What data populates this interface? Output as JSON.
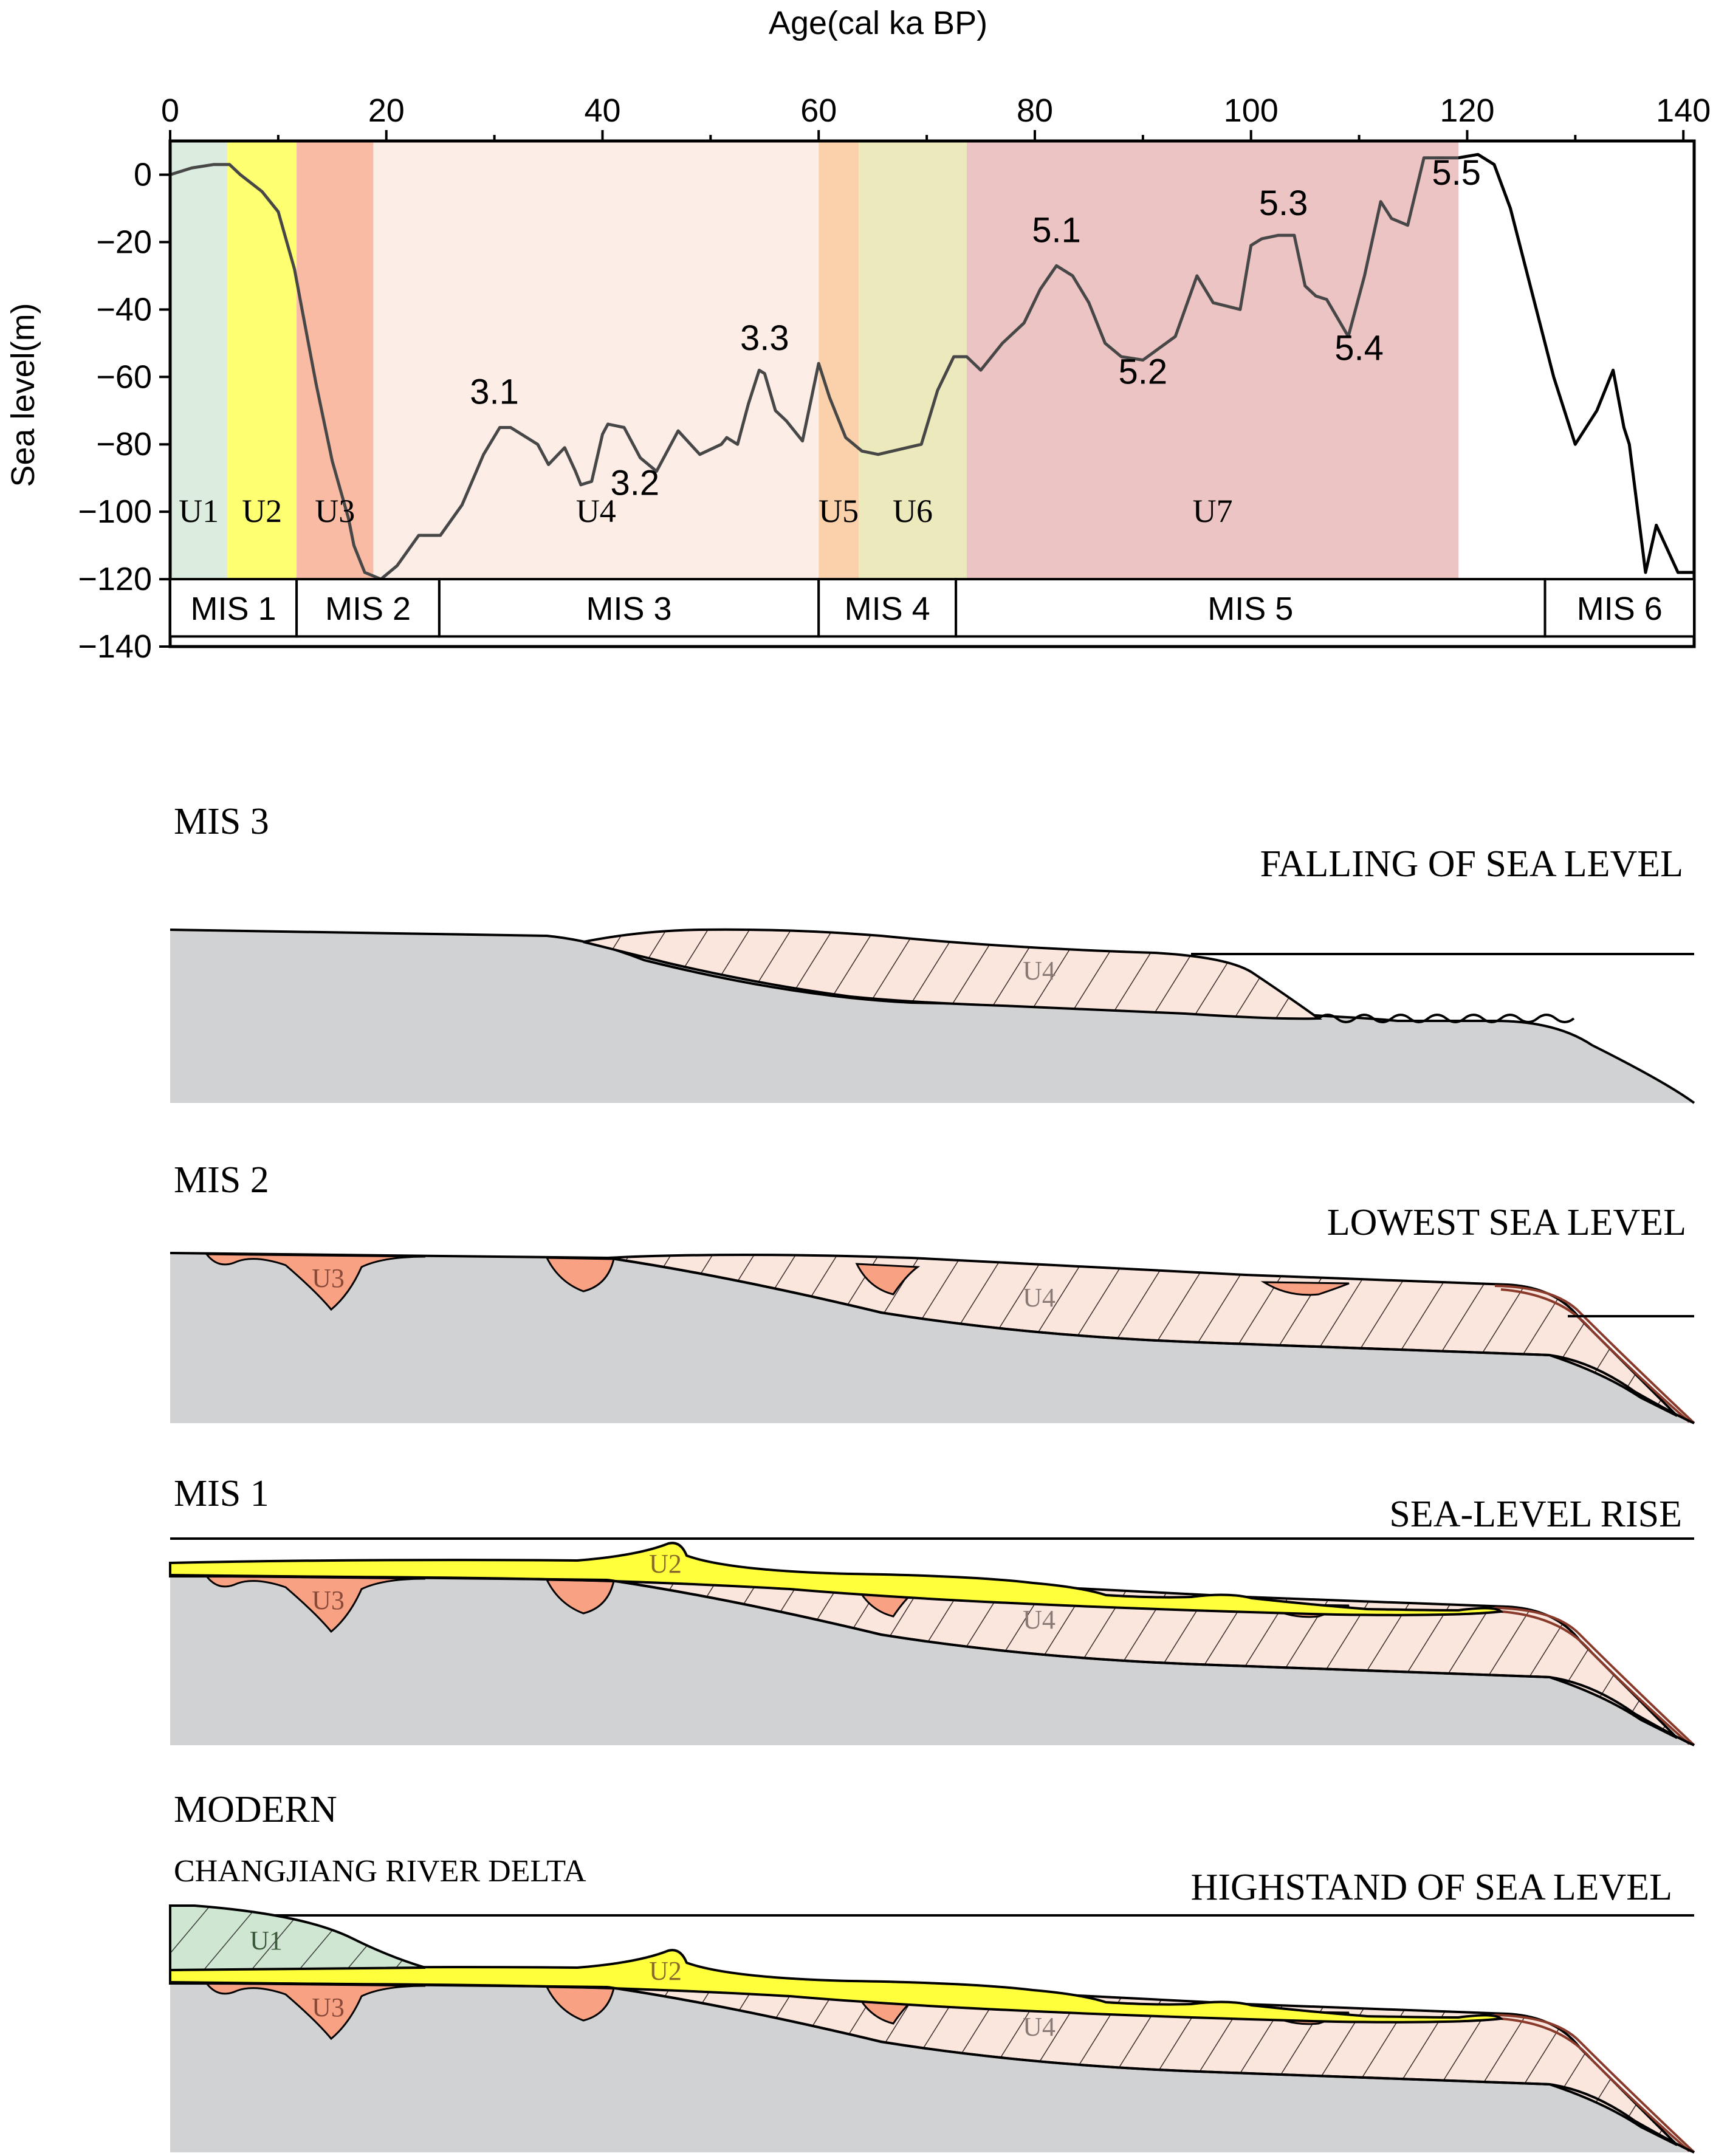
{
  "chart": {
    "x_axis_label": "Age(cal ka BP)",
    "y_axis_label": "Sea level(m)",
    "x_ticks": [
      "0",
      "20",
      "40",
      "60",
      "80",
      "100",
      "120",
      "140"
    ],
    "y_ticks": [
      "0",
      "−20",
      "−40",
      "−60",
      "−80",
      "−100",
      "−120",
      "−140"
    ],
    "units": [
      {
        "label": "U1",
        "from": 0,
        "to": 5.3,
        "color": "#cfe6d3"
      },
      {
        "label": "U2",
        "from": 5.3,
        "to": 11.7,
        "color": "#ffff3c"
      },
      {
        "label": "U3",
        "from": 11.7,
        "to": 18.8,
        "color": "#f9a183"
      },
      {
        "label": "U4",
        "from": 18.8,
        "to": 60.0,
        "color": "#fbe6de"
      },
      {
        "label": "U5",
        "from": 60.0,
        "to": 63.7,
        "color": "#f9c08a"
      },
      {
        "label": "U6",
        "from": 63.7,
        "to": 73.7,
        "color": "#e5e2a2"
      },
      {
        "label": "U7",
        "from": 73.7,
        "to": 119.2,
        "color": "#e5adac"
      }
    ],
    "stages": [
      {
        "label": "MIS 1",
        "from": 0,
        "to": 11.7
      },
      {
        "label": "MIS 2",
        "from": 11.7,
        "to": 24.9
      },
      {
        "label": "MIS 3",
        "from": 24.9,
        "to": 60.0
      },
      {
        "label": "MIS 4",
        "from": 60.0,
        "to": 72.7
      },
      {
        "label": "MIS 5",
        "from": 72.7,
        "to": 127.2
      },
      {
        "label": "MIS 6",
        "from": 127.2,
        "to": 141
      }
    ],
    "peak_labels": [
      "3.1",
      "3.2",
      "3.3",
      "5.1",
      "5.2",
      "5.3",
      "5.4",
      "5.5"
    ],
    "legend": {
      "items": [
        {
          "name": "U1",
          "swatch_color": "#cfe6d3"
        },
        {
          "name": "U2",
          "swatch_color": "#ffff3c"
        },
        {
          "name": "U3",
          "swatch_color": "#f9a183"
        },
        {
          "name": "U4",
          "swatch_color": "#fbe6de"
        },
        {
          "name": "U5",
          "swatch_color": "#f9c08a"
        },
        {
          "name": "U6",
          "swatch_color": "#e5e2a2"
        },
        {
          "name": "U7",
          "swatch_color": "#e5adac"
        }
      ]
    }
  },
  "chart_data": {
    "type": "line",
    "title": "",
    "xlabel": "Age(cal ka BP)",
    "ylabel": "Sea level(m)",
    "xlim": [
      0,
      141
    ],
    "ylim": [
      -140,
      10
    ],
    "series": [
      {
        "name": "Sea level",
        "x": [
          0,
          2,
          4,
          5.5,
          6.5,
          8.5,
          10,
          11.5,
          12.5,
          13.5,
          15,
          16.5,
          17,
          18,
          19.5,
          21,
          23,
          25,
          27,
          29,
          30.5,
          31.5,
          33,
          34,
          35,
          36.5,
          37.5,
          38,
          39,
          40,
          40.5,
          42,
          43.5,
          45,
          47,
          49,
          51,
          51.5,
          52.5,
          53.5,
          54.5,
          55,
          56,
          57,
          58.5,
          60,
          61,
          62.5,
          64,
          65.5,
          69.5,
          71,
          72.5,
          73.7,
          75,
          77,
          79,
          80.5,
          82,
          83.5,
          85,
          86.5,
          88,
          90,
          93,
          95,
          96.5,
          99,
          100,
          101,
          102.5,
          104,
          105,
          106,
          107,
          109,
          110.5,
          112,
          113,
          114.5,
          116,
          117.5,
          119,
          119.2,
          121,
          122.5,
          124,
          126,
          128,
          130,
          132,
          133.5,
          134.5,
          135,
          136.5,
          137.5,
          139.5,
          141
        ],
        "values": [
          0,
          2,
          3,
          3,
          0,
          -5,
          -11,
          -28,
          -45,
          -62,
          -85,
          -102,
          -110,
          -118,
          -120,
          -116,
          -107,
          -107,
          -98,
          -83,
          -75,
          -75,
          -78,
          -80,
          -86,
          -81,
          -88,
          -92,
          -91,
          -77,
          -74,
          -75,
          -84,
          -88,
          -76,
          -83,
          -80,
          -78,
          -80,
          -68,
          -58,
          -59,
          -70,
          -73,
          -79,
          -56,
          -66,
          -78,
          -82,
          -83,
          -80,
          -64,
          -54,
          -54,
          -58,
          -50,
          -44,
          -34,
          -27,
          -30,
          -38,
          -50,
          -54,
          -55,
          -48,
          -30,
          -38,
          -40,
          -21,
          -19,
          -18,
          -18,
          -33,
          -36,
          -37,
          -48,
          -30,
          -8,
          -13,
          -15,
          5,
          5,
          5,
          5,
          6,
          3,
          -10,
          -35,
          -60,
          -80,
          -70,
          -58,
          -75,
          -80,
          -118,
          -104,
          -118,
          -118
        ]
      }
    ],
    "annotations": [
      {
        "text": "3.1",
        "x": 30,
        "y": -68
      },
      {
        "text": "3.2",
        "x": 43,
        "y": -95
      },
      {
        "text": "3.3",
        "x": 55,
        "y": -52
      },
      {
        "text": "5.1",
        "x": 82,
        "y": -20
      },
      {
        "text": "5.2",
        "x": 90,
        "y": -62
      },
      {
        "text": "5.3",
        "x": 103,
        "y": -12
      },
      {
        "text": "5.4",
        "x": 110,
        "y": -55
      },
      {
        "text": "5.5",
        "x": 119,
        "y": -3
      }
    ],
    "grid": false
  },
  "panels": {
    "mis3": {
      "title": "MIS 3",
      "caption": "FALLING OF SEA LEVEL",
      "unit_u4": "U4"
    },
    "mis2": {
      "title": "MIS 2",
      "caption": "LOWEST SEA LEVEL",
      "unit_u3": "U3",
      "unit_u4": "U4"
    },
    "mis1": {
      "title": "MIS 1",
      "caption": "SEA-LEVEL RISE",
      "unit_u2": "U2",
      "unit_u3": "U3",
      "unit_u4": "U4"
    },
    "modern": {
      "title": "MODERN",
      "subtitle": "CHANGJIANG RIVER DELTA",
      "caption": "HIGHSTAND OF SEA LEVEL",
      "unit_u1": "U1",
      "unit_u2": "U2",
      "unit_u3": "U3",
      "unit_u4": "U4"
    }
  },
  "colors": {
    "basement": "#d1d2d3",
    "u1": "#cfe6d3",
    "u2": "#ffff3c",
    "u3": "#f9a183",
    "u4": "#fbe6de",
    "u4_hatch": "#3a2a2a",
    "line": "#000000"
  }
}
